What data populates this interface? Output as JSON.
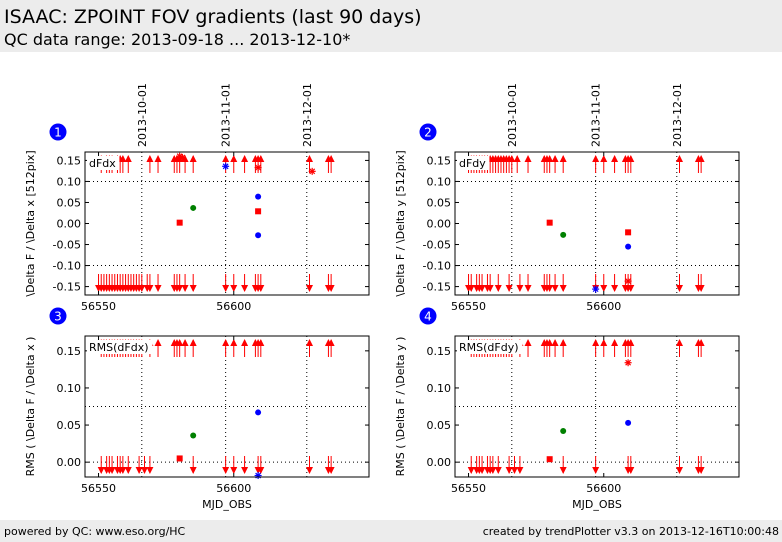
{
  "header": {
    "title": "ISAAC: ZPOINT FOV gradients (last 90 days)",
    "subtitle": "QC data range: 2013-09-18 ... 2013-12-10*"
  },
  "footer": {
    "left_text": "powered by QC: www.eso.org/HC",
    "right_text": "created by trendPlotter v3.3 on 2013-12-16T10:00:48"
  },
  "colors": {
    "red": "#ff0000",
    "green": "#008000",
    "blue": "#0000ff",
    "badge": "#0000ff"
  },
  "shared_x": {
    "xlim": [
      56545,
      56650
    ],
    "xticks": [
      56550,
      56600
    ],
    "xtick_labels": [
      "56550",
      "56600"
    ],
    "date_ticks": [
      {
        "mjd": 56566,
        "label": "2013-10-01"
      },
      {
        "mjd": 56597,
        "label": "2013-11-01"
      },
      {
        "mjd": 56627,
        "label": "2013-12-01"
      }
    ],
    "xlabel": "MJD_OBS"
  },
  "chart_data": [
    {
      "type": "scatter",
      "panel_number": "1",
      "legend_text": "dFdx",
      "ylabel": "\\Delta F / \\Delta x [512pix]",
      "ylim": [
        -0.17,
        0.17
      ],
      "yticks": [
        -0.15,
        -0.1,
        -0.05,
        0.0,
        0.05,
        0.1,
        0.15
      ],
      "ytick_labels": [
        "-0.15",
        "-0.10",
        "-0.05",
        "0.00",
        "0.05",
        "0.10",
        "0.15"
      ],
      "hlines": [
        0.1,
        -0.1
      ],
      "xticklabels_shown": true,
      "xlabel_shown": false,
      "out_of_range_high_x": [
        56551,
        56553,
        56554,
        56555,
        56557,
        56558,
        56559,
        56561,
        56569,
        56572,
        56578,
        56579,
        56580,
        56582,
        56585,
        56597,
        56600,
        56604,
        56608,
        56609,
        56610,
        56628,
        56635,
        56636
      ],
      "out_of_range_low_x": [
        56550,
        56551,
        56552,
        56553,
        56554,
        56555,
        56556,
        56557,
        56558,
        56559,
        56560,
        56561,
        56562,
        56563,
        56564,
        56565,
        56566,
        56568,
        56569,
        56572,
        56578,
        56579,
        56580,
        56582,
        56585,
        56597,
        56600,
        56604,
        56608,
        56609,
        56610,
        56628,
        56635,
        56636
      ],
      "series": [
        {
          "color": "red",
          "marker": "square",
          "x": [
            56580,
            56609
          ],
          "y": [
            0.002,
            0.029
          ]
        },
        {
          "color": "green",
          "marker": "circle",
          "x": [
            56585
          ],
          "y": [
            0.037
          ]
        },
        {
          "color": "blue",
          "marker": "circle",
          "x": [
            56609,
            56609
          ],
          "y": [
            0.064,
            -0.028
          ]
        },
        {
          "color": "red",
          "marker": "star",
          "x": [
            56580,
            56581,
            56609,
            56629
          ],
          "y": [
            0.16,
            0.157,
            0.133,
            0.124
          ]
        },
        {
          "color": "blue",
          "marker": "star",
          "x": [
            56597
          ],
          "y": [
            0.136
          ]
        }
      ]
    },
    {
      "type": "scatter",
      "panel_number": "2",
      "legend_text": "dFdy",
      "ylabel": "\\Delta F / \\Delta y [512pix]",
      "ylim": [
        -0.17,
        0.17
      ],
      "yticks": [
        -0.15,
        -0.1,
        -0.05,
        0.0,
        0.05,
        0.1,
        0.15
      ],
      "ytick_labels": [
        "-0.15",
        "-0.10",
        "-0.05",
        "0.00",
        "0.05",
        "0.10",
        "0.15"
      ],
      "hlines": [
        0.1,
        -0.1
      ],
      "xticklabels_shown": true,
      "xlabel_shown": false,
      "out_of_range_high_x": [
        56550,
        56551,
        56552,
        56553,
        56554,
        56555,
        56556,
        56557,
        56558,
        56559,
        56560,
        56561,
        56562,
        56563,
        56564,
        56565,
        56566,
        56568,
        56572,
        56578,
        56579,
        56580,
        56582,
        56585,
        56597,
        56600,
        56604,
        56608,
        56609,
        56610,
        56628,
        56635,
        56636
      ],
      "out_of_range_low_x": [
        56550,
        56551,
        56553,
        56554,
        56555,
        56557,
        56558,
        56561,
        56565,
        56569,
        56572,
        56578,
        56579,
        56580,
        56582,
        56585,
        56597,
        56600,
        56604,
        56608,
        56609,
        56610,
        56628,
        56635,
        56636
      ],
      "series": [
        {
          "color": "red",
          "marker": "square",
          "x": [
            56580,
            56609
          ],
          "y": [
            0.002,
            -0.021
          ]
        },
        {
          "color": "green",
          "marker": "circle",
          "x": [
            56585
          ],
          "y": [
            -0.027
          ]
        },
        {
          "color": "blue",
          "marker": "circle",
          "x": [
            56609
          ],
          "y": [
            -0.055
          ]
        },
        {
          "color": "red",
          "marker": "star",
          "x": [
            56609
          ],
          "y": [
            -0.137
          ]
        },
        {
          "color": "blue",
          "marker": "star",
          "x": [
            56597
          ],
          "y": [
            -0.156
          ]
        }
      ]
    },
    {
      "type": "scatter",
      "panel_number": "3",
      "legend_text": "RMS(dFdx)",
      "ylabel": "RMS ( \\Delta F / \\Delta x )",
      "ylim": [
        -0.02,
        0.17
      ],
      "yticks": [
        0.0,
        0.05,
        0.1,
        0.15
      ],
      "ytick_labels": [
        "0.00",
        "0.05",
        "0.10",
        "0.15"
      ],
      "hlines": [
        0.075,
        0.0
      ],
      "xticklabels_shown": true,
      "xlabel_shown": true,
      "out_of_range_high_x": [
        56551,
        56552,
        56553,
        56554,
        56555,
        56556,
        56557,
        56558,
        56559,
        56560,
        56561,
        56562,
        56563,
        56564,
        56565,
        56566,
        56569,
        56572,
        56578,
        56579,
        56580,
        56582,
        56585,
        56597,
        56600,
        56604,
        56608,
        56609,
        56610,
        56628,
        56635,
        56636
      ],
      "out_of_range_low_x": [
        56551,
        56553,
        56554,
        56555,
        56557,
        56558,
        56559,
        56561,
        56565,
        56567,
        56569,
        56585,
        56597,
        56600,
        56604,
        56609,
        56610,
        56628,
        56635,
        56636
      ],
      "series": [
        {
          "color": "red",
          "marker": "square",
          "x": [
            56580
          ],
          "y": [
            0.005
          ]
        },
        {
          "color": "green",
          "marker": "circle",
          "x": [
            56585
          ],
          "y": [
            0.036
          ]
        },
        {
          "color": "blue",
          "marker": "circle",
          "x": [
            56609
          ],
          "y": [
            0.067
          ]
        },
        {
          "color": "blue",
          "marker": "star",
          "x": [
            56609
          ],
          "y": [
            -0.018
          ]
        }
      ]
    },
    {
      "type": "scatter",
      "panel_number": "4",
      "legend_text": "RMS(dFdy)",
      "ylabel": "RMS ( \\Delta F / \\Delta y )",
      "ylim": [
        -0.02,
        0.17
      ],
      "yticks": [
        0.0,
        0.05,
        0.1,
        0.15
      ],
      "ytick_labels": [
        "0.00",
        "0.05",
        "0.10",
        "0.15"
      ],
      "hlines": [
        0.075,
        0.0
      ],
      "xticklabels_shown": true,
      "xlabel_shown": true,
      "out_of_range_high_x": [
        56551,
        56552,
        56553,
        56554,
        56555,
        56556,
        56557,
        56558,
        56559,
        56560,
        56561,
        56562,
        56563,
        56564,
        56565,
        56566,
        56569,
        56572,
        56578,
        56579,
        56580,
        56582,
        56585,
        56597,
        56600,
        56604,
        56608,
        56609,
        56610,
        56628,
        56635,
        56636
      ],
      "out_of_range_low_x": [
        56551,
        56553,
        56554,
        56555,
        56557,
        56558,
        56559,
        56561,
        56565,
        56567,
        56569,
        56585,
        56597,
        56609,
        56610,
        56628,
        56635,
        56636
      ],
      "series": [
        {
          "color": "red",
          "marker": "square",
          "x": [
            56580
          ],
          "y": [
            0.004
          ]
        },
        {
          "color": "green",
          "marker": "circle",
          "x": [
            56585
          ],
          "y": [
            0.042
          ]
        },
        {
          "color": "blue",
          "marker": "circle",
          "x": [
            56609
          ],
          "y": [
            0.053
          ]
        },
        {
          "color": "red",
          "marker": "star",
          "x": [
            56609
          ],
          "y": [
            0.134
          ]
        }
      ]
    }
  ]
}
